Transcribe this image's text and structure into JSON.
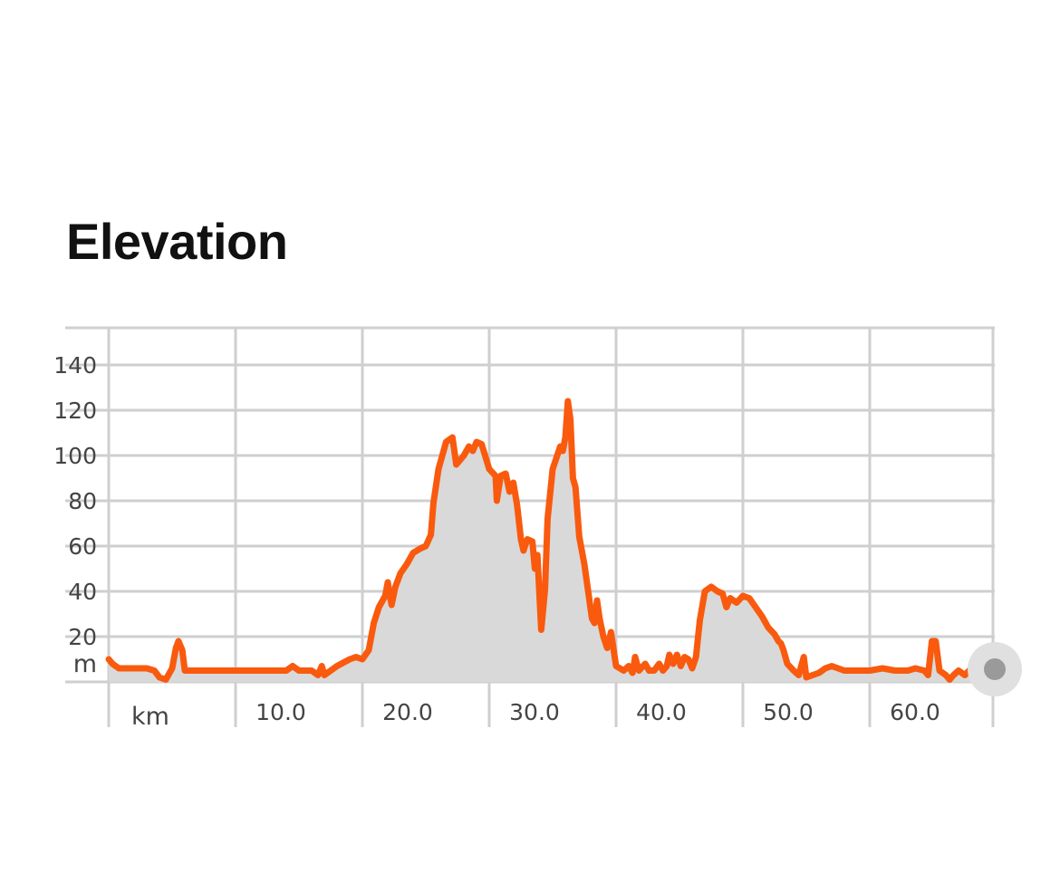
{
  "header": {
    "title": "Elevation"
  },
  "chart_data": {
    "type": "area",
    "title": "Elevation",
    "xlabel": "km",
    "ylabel": "m",
    "x_tick_labels": [
      "10.0",
      "20.0",
      "30.0",
      "40.0",
      "50.0",
      "60.0"
    ],
    "x_ticks": [
      10,
      20,
      30,
      40,
      50,
      60
    ],
    "y_tick_labels": [
      "20",
      "40",
      "60",
      "80",
      "100",
      "120",
      "140"
    ],
    "y_ticks": [
      20,
      40,
      60,
      80,
      100,
      120,
      140
    ],
    "xlim": [
      0,
      70
    ],
    "ylim": [
      0,
      160
    ],
    "grid": true,
    "colors": {
      "line": "#F95A0E",
      "fill": "#D9D9D9",
      "grid": "#CFCFCF",
      "axis_text": "#444444",
      "handle": "#9A9A9A",
      "handle_halo": "#E0E0E0"
    },
    "series": [
      {
        "points": [
          [
            0,
            10
          ],
          [
            0.3,
            8
          ],
          [
            0.8,
            6
          ],
          [
            2,
            6
          ],
          [
            3,
            6
          ],
          [
            3.6,
            5
          ],
          [
            4,
            2
          ],
          [
            4.5,
            1
          ],
          [
            5,
            6
          ],
          [
            5.3,
            15
          ],
          [
            5.5,
            18
          ],
          [
            5.8,
            14
          ],
          [
            6,
            5
          ],
          [
            7,
            5
          ],
          [
            8,
            5
          ],
          [
            9,
            5
          ],
          [
            10,
            5
          ],
          [
            12,
            5
          ],
          [
            14,
            5
          ],
          [
            14.5,
            7
          ],
          [
            15,
            5
          ],
          [
            16,
            5
          ],
          [
            16.5,
            3
          ],
          [
            16.8,
            7
          ],
          [
            17,
            3
          ],
          [
            17.5,
            5
          ],
          [
            18,
            7
          ],
          [
            19,
            10
          ],
          [
            19.5,
            11
          ],
          [
            20,
            10
          ],
          [
            20.5,
            14
          ],
          [
            20.9,
            26
          ],
          [
            21.3,
            33
          ],
          [
            21.8,
            38
          ],
          [
            22,
            44
          ],
          [
            22.3,
            34
          ],
          [
            22.6,
            42
          ],
          [
            23,
            48
          ],
          [
            23.5,
            52
          ],
          [
            24,
            57
          ],
          [
            24.6,
            59
          ],
          [
            25,
            60
          ],
          [
            25.4,
            65
          ],
          [
            25.6,
            79
          ],
          [
            26,
            94
          ],
          [
            26.6,
            106
          ],
          [
            27.1,
            108
          ],
          [
            27.4,
            96
          ],
          [
            28,
            100
          ],
          [
            28.4,
            104
          ],
          [
            28.7,
            102
          ],
          [
            29,
            106
          ],
          [
            29.4,
            105
          ],
          [
            30,
            94
          ],
          [
            30.5,
            91
          ],
          [
            30.6,
            80
          ],
          [
            30.9,
            91
          ],
          [
            31.3,
            92
          ],
          [
            31.6,
            84
          ],
          [
            31.9,
            88
          ],
          [
            32.2,
            78
          ],
          [
            32.5,
            63
          ],
          [
            32.7,
            58
          ],
          [
            33,
            63
          ],
          [
            33.4,
            62
          ],
          [
            33.6,
            50
          ],
          [
            33.8,
            56
          ],
          [
            34.1,
            23
          ],
          [
            34.4,
            41
          ],
          [
            34.6,
            72
          ],
          [
            35,
            94
          ],
          [
            35.3,
            99
          ],
          [
            35.6,
            104
          ],
          [
            35.8,
            102
          ],
          [
            36,
            108
          ],
          [
            36.2,
            124
          ],
          [
            36.4,
            116
          ],
          [
            36.6,
            90
          ],
          [
            36.8,
            86
          ],
          [
            37.1,
            64
          ],
          [
            37.5,
            52
          ],
          [
            37.8,
            40
          ],
          [
            38.1,
            28
          ],
          [
            38.3,
            26
          ],
          [
            38.5,
            36
          ],
          [
            38.7,
            28
          ],
          [
            39,
            20
          ],
          [
            39.3,
            15
          ],
          [
            39.6,
            22
          ],
          [
            40,
            7
          ],
          [
            40.6,
            5
          ],
          [
            41,
            7
          ],
          [
            41.3,
            4
          ],
          [
            41.5,
            11
          ],
          [
            41.8,
            5
          ],
          [
            42.3,
            8
          ],
          [
            42.6,
            5
          ],
          [
            43,
            5
          ],
          [
            43.4,
            8
          ],
          [
            43.7,
            5
          ],
          [
            44,
            7
          ],
          [
            44.2,
            12
          ],
          [
            44.5,
            8
          ],
          [
            44.8,
            12
          ],
          [
            45.1,
            7
          ],
          [
            45.4,
            11
          ],
          [
            45.7,
            10
          ],
          [
            46,
            6
          ],
          [
            46.3,
            11
          ],
          [
            46.6,
            27
          ],
          [
            47,
            40
          ],
          [
            47.5,
            42
          ],
          [
            48,
            40
          ],
          [
            48.4,
            39
          ],
          [
            48.7,
            33
          ],
          [
            49,
            37
          ],
          [
            49.5,
            35
          ],
          [
            50,
            38
          ],
          [
            50.5,
            37
          ],
          [
            51,
            33
          ],
          [
            51.5,
            29
          ],
          [
            52,
            24
          ],
          [
            52.5,
            21
          ],
          [
            52.8,
            18
          ],
          [
            53,
            17
          ],
          [
            53.2,
            14
          ],
          [
            53.5,
            8
          ],
          [
            54,
            5
          ],
          [
            54.4,
            3
          ],
          [
            54.8,
            11
          ],
          [
            55,
            2
          ],
          [
            55.5,
            3
          ],
          [
            56,
            4
          ],
          [
            56.5,
            6
          ],
          [
            57,
            7
          ],
          [
            57.5,
            6
          ],
          [
            58,
            5
          ],
          [
            59,
            5
          ],
          [
            60,
            5
          ],
          [
            61,
            6
          ],
          [
            62,
            5
          ],
          [
            63,
            5
          ],
          [
            63.6,
            6
          ],
          [
            64.3,
            5
          ],
          [
            64.6,
            3
          ],
          [
            64.9,
            18
          ],
          [
            65.2,
            18
          ],
          [
            65.5,
            5
          ],
          [
            66,
            3
          ],
          [
            66.3,
            1
          ],
          [
            66.6,
            3
          ],
          [
            67,
            5
          ],
          [
            67.5,
            3
          ],
          [
            68,
            6
          ],
          [
            68.7,
            6
          ]
        ]
      }
    ]
  }
}
